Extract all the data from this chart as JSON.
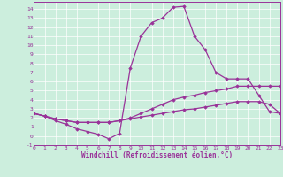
{
  "xlabel": "Windchill (Refroidissement éolien,°C)",
  "background_color": "#cceedd",
  "line_color": "#993399",
  "grid_color": "#ffffff",
  "xlim": [
    0,
    23
  ],
  "ylim": [
    -0.8,
    14.8
  ],
  "xticks": [
    0,
    1,
    2,
    3,
    4,
    5,
    6,
    7,
    8,
    9,
    10,
    11,
    12,
    13,
    14,
    15,
    16,
    17,
    18,
    19,
    20,
    21,
    22,
    23
  ],
  "yticks": [
    -1,
    0,
    1,
    2,
    3,
    4,
    5,
    6,
    7,
    8,
    9,
    10,
    11,
    12,
    13,
    14
  ],
  "series": [
    [
      2.5,
      2.2,
      1.7,
      1.3,
      0.8,
      0.5,
      0.2,
      -0.3,
      0.3,
      7.5,
      11.0,
      12.5,
      13.0,
      14.2,
      14.3,
      11.0,
      9.5,
      7.0,
      6.3,
      6.3,
      6.3,
      4.5,
      2.7,
      2.5
    ],
    [
      2.5,
      2.2,
      1.9,
      1.7,
      1.5,
      1.5,
      1.5,
      1.5,
      1.7,
      2.0,
      2.5,
      3.0,
      3.5,
      4.0,
      4.3,
      4.5,
      4.8,
      5.0,
      5.2,
      5.5,
      5.5,
      5.5,
      5.5,
      5.5
    ],
    [
      2.5,
      2.2,
      1.9,
      1.7,
      1.5,
      1.5,
      1.5,
      1.5,
      1.7,
      1.9,
      2.1,
      2.3,
      2.5,
      2.7,
      2.9,
      3.0,
      3.2,
      3.4,
      3.6,
      3.8,
      3.8,
      3.8,
      3.5,
      2.5
    ]
  ]
}
